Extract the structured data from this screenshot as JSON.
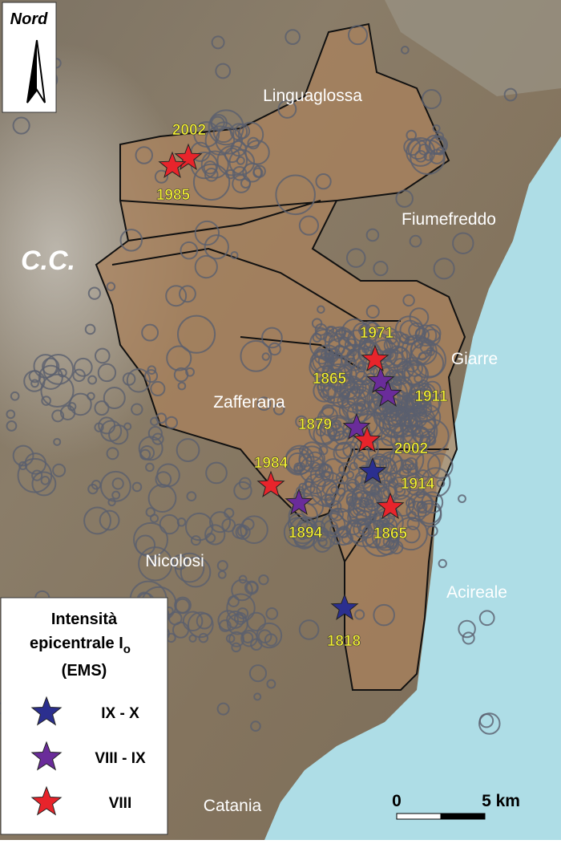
{
  "north_label": "Nord",
  "crater_label": "C.C.",
  "places": [
    "Linguaglossa",
    "Fiumefreddo",
    "Giarre",
    "Zafferana",
    "Nicolosi",
    "Acireale",
    "Catania"
  ],
  "legend": {
    "title": [
      "Intensità",
      "epicentrale I",
      "(EMS)"
    ],
    "title_subscript": "o",
    "classes": [
      {
        "label": "IX - X",
        "color": "#2b2f8f",
        "events": [
          "1914",
          "1818"
        ]
      },
      {
        "label": "VIII - IX",
        "color": "#6a2c9a",
        "events": [
          "1865",
          "1911",
          "1879",
          "1894"
        ]
      },
      {
        "label": "VIII",
        "color": "#e8242b",
        "events": [
          "2002",
          "1985",
          "1971",
          "2002",
          "1984",
          "1865"
        ]
      }
    ]
  },
  "scale": {
    "start": "0",
    "end": "5 km"
  }
}
